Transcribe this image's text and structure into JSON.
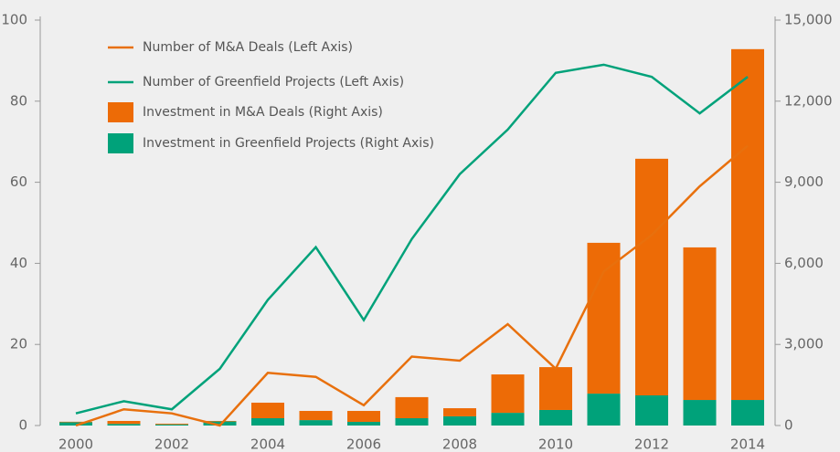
{
  "chart_data": {
    "type": "bar-line",
    "categories": [
      "2000",
      "2001",
      "2002",
      "2003",
      "2004",
      "2005",
      "2006",
      "2007",
      "2008",
      "2009",
      "2010",
      "2011",
      "2012",
      "2013",
      "2014"
    ],
    "x_labels": [
      "2000",
      null,
      "2002",
      null,
      "2004",
      null,
      "2006",
      null,
      "2008",
      null,
      "2010",
      null,
      "2012",
      null,
      "2014"
    ],
    "ylim": [
      0,
      100
    ],
    "yticks": [
      0,
      20,
      40,
      60,
      80,
      100
    ],
    "y2lim": [
      0,
      15000
    ],
    "y2ticks": [
      0,
      {
        "value": 3000,
        "label": "3,000"
      },
      {
        "value": 6000,
        "label": "6,000"
      },
      {
        "value": 9000,
        "label": "9,000"
      },
      {
        "value": 12000,
        "label": "12,000"
      },
      {
        "value": 15000,
        "label": "15,000"
      }
    ],
    "series": [
      {
        "name": "Number of M&A Deals (Left Axis)",
        "kind": "line",
        "axis": "y",
        "color": "#e8700d",
        "values": [
          0,
          4,
          3,
          0,
          13,
          12,
          5,
          17,
          16,
          25,
          14,
          38,
          47,
          59,
          69
        ]
      },
      {
        "name": "Number of Greenfield Projects (Left Axis)",
        "kind": "line",
        "axis": "y",
        "color": "#00a27a",
        "values": [
          3,
          6,
          4,
          14,
          31,
          44,
          26,
          46,
          62,
          73,
          87,
          89,
          86,
          77,
          86
        ]
      },
      {
        "name": "Investment in M&A Deals (Right Axis)",
        "kind": "bar",
        "axis": "y2",
        "color": "#ed6b06",
        "values": [
          20,
          110,
          30,
          20,
          575,
          340,
          405,
          780,
          300,
          1420,
          1585,
          5580,
          8755,
          5645,
          12980
        ]
      },
      {
        "name": "Investment in Greenfield Projects (Right Axis)",
        "kind": "bar",
        "axis": "y2",
        "color": "#00a27a",
        "values": [
          120,
          60,
          40,
          150,
          270,
          200,
          135,
          270,
          340,
          470,
          575,
          1180,
          1115,
          945,
          945
        ]
      }
    ]
  }
}
